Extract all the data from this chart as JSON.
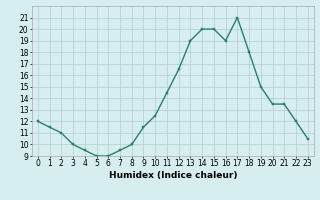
{
  "x": [
    0,
    1,
    2,
    3,
    4,
    5,
    6,
    7,
    8,
    9,
    10,
    11,
    12,
    13,
    14,
    15,
    16,
    17,
    18,
    19,
    20,
    21,
    22,
    23
  ],
  "y": [
    12,
    11.5,
    11,
    10,
    9.5,
    9,
    9,
    9.5,
    10,
    11.5,
    12.5,
    14.5,
    16.5,
    19,
    20,
    20,
    19,
    21,
    18,
    15,
    13.5,
    13.5,
    12,
    10.5
  ],
  "xlabel": "Humidex (Indice chaleur)",
  "line_color": "#2d7d6d",
  "marker_color": "#2d7d6d",
  "bg_color": "#d6eef0",
  "grid_color": "#b0cdd0",
  "xlim": [
    -0.5,
    23.5
  ],
  "ylim": [
    9,
    22
  ],
  "yticks": [
    9,
    10,
    11,
    12,
    13,
    14,
    15,
    16,
    17,
    18,
    19,
    20,
    21
  ],
  "xticks": [
    0,
    1,
    2,
    3,
    4,
    5,
    6,
    7,
    8,
    9,
    10,
    11,
    12,
    13,
    14,
    15,
    16,
    17,
    18,
    19,
    20,
    21,
    22,
    23
  ],
  "tick_fontsize": 5.5,
  "xlabel_fontsize": 6.5,
  "marker_size": 2.0,
  "line_width": 1.0
}
